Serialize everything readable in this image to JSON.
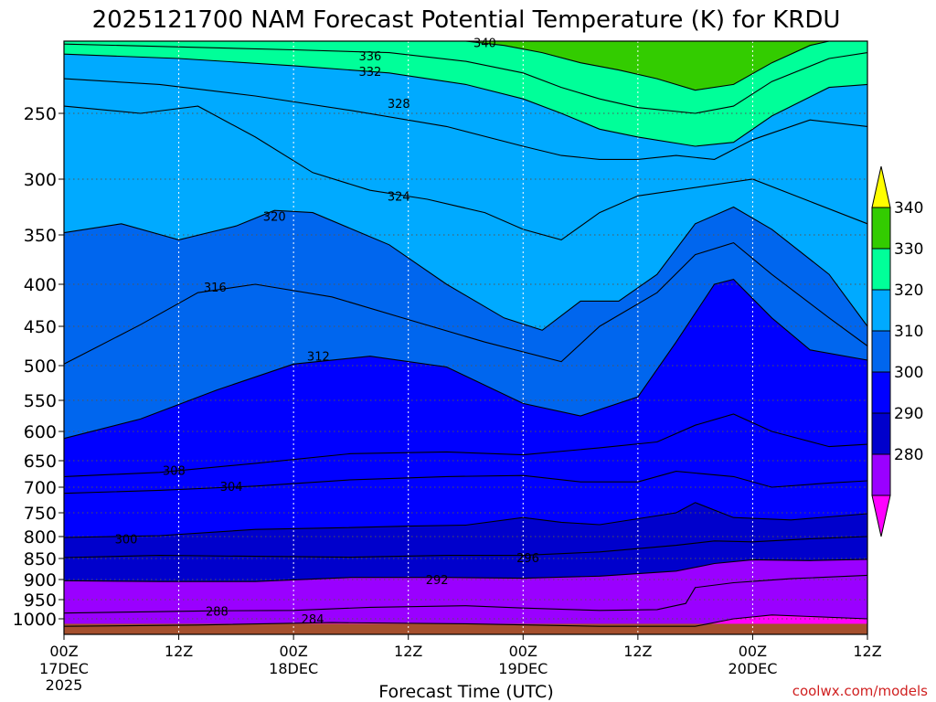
{
  "chart_data": {
    "type": "heatmap",
    "title": "2025121700 NAM Forecast Potential Temperature (K) for KRDU",
    "xlabel": "Forecast Time (UTC)",
    "ylabel": "",
    "credit": "coolwx.com/models",
    "x_ticks": [
      {
        "label": "00Z",
        "sub": "17DEC",
        "sub2": "2025",
        "hour": 0
      },
      {
        "label": "12Z",
        "sub": "",
        "sub2": "",
        "hour": 12
      },
      {
        "label": "00Z",
        "sub": "18DEC",
        "sub2": "",
        "hour": 24
      },
      {
        "label": "12Z",
        "sub": "",
        "sub2": "",
        "hour": 36
      },
      {
        "label": "00Z",
        "sub": "19DEC",
        "sub2": "",
        "hour": 48
      },
      {
        "label": "12Z",
        "sub": "",
        "sub2": "",
        "hour": 60
      },
      {
        "label": "00Z",
        "sub": "20DEC",
        "sub2": "",
        "hour": 72
      },
      {
        "label": "12Z",
        "sub": "",
        "sub2": "",
        "hour": 84
      }
    ],
    "xlim": [
      0,
      84
    ],
    "ylim": [
      1025,
      200
    ],
    "y_ticks": [
      250,
      300,
      350,
      400,
      450,
      500,
      550,
      600,
      650,
      700,
      750,
      800,
      850,
      900,
      950,
      1000
    ],
    "colorbar": {
      "levels": [
        280,
        290,
        300,
        310,
        320,
        330,
        340
      ],
      "colors": [
        "#ff00ff",
        "#9a00ff",
        "#0000cc",
        "#0000ff",
        "#0066ee",
        "#00aaff",
        "#00ff99",
        "#33cc00",
        "#ffff00"
      ]
    },
    "ground_color": "#a5502d",
    "series": [
      {
        "name": "284",
        "label_at": {
          "hour": 26,
          "pres": 1000
        },
        "values": [
          [
            0,
            1012
          ],
          [
            14,
            1010
          ],
          [
            28,
            1006
          ],
          [
            42,
            1008
          ],
          [
            56,
            1012
          ],
          [
            66,
            1012
          ],
          [
            70,
            1000
          ],
          [
            74,
            990
          ],
          [
            84,
            1000
          ]
        ]
      },
      {
        "name": "288",
        "label_at": {
          "hour": 16,
          "pres": 980
        },
        "values": [
          [
            0,
            985
          ],
          [
            8,
            982
          ],
          [
            16,
            979
          ],
          [
            24,
            978
          ],
          [
            32,
            970
          ],
          [
            42,
            966
          ],
          [
            48,
            972
          ],
          [
            56,
            978
          ],
          [
            62,
            976
          ],
          [
            65,
            960
          ],
          [
            66,
            920
          ],
          [
            70,
            908
          ],
          [
            76,
            898
          ],
          [
            84,
            890
          ]
        ]
      },
      {
        "name": "292",
        "label_at": {
          "hour": 39,
          "pres": 900
        },
        "values": [
          [
            0,
            903
          ],
          [
            10,
            905
          ],
          [
            20,
            905
          ],
          [
            30,
            895
          ],
          [
            40,
            895
          ],
          [
            48,
            897
          ],
          [
            56,
            892
          ],
          [
            64,
            880
          ],
          [
            68,
            862
          ],
          [
            72,
            853
          ],
          [
            78,
            855
          ],
          [
            84,
            852
          ]
        ]
      },
      {
        "name": "296",
        "label_at": {
          "hour": 48.5,
          "pres": 848
        },
        "values": [
          [
            0,
            848
          ],
          [
            10,
            843
          ],
          [
            20,
            845
          ],
          [
            30,
            847
          ],
          [
            40,
            843
          ],
          [
            48,
            843
          ],
          [
            56,
            835
          ],
          [
            64,
            820
          ],
          [
            68,
            810
          ],
          [
            72,
            812
          ],
          [
            78,
            805
          ],
          [
            84,
            800
          ]
        ]
      },
      {
        "name": "300",
        "label_at": {
          "hour": 6.5,
          "pres": 805
        },
        "values": [
          [
            0,
            802
          ],
          [
            10,
            798
          ],
          [
            20,
            785
          ],
          [
            28,
            782
          ],
          [
            36,
            778
          ],
          [
            42,
            776
          ],
          [
            48,
            760
          ],
          [
            52,
            770
          ],
          [
            56,
            775
          ],
          [
            64,
            750
          ],
          [
            66,
            730
          ],
          [
            70,
            760
          ],
          [
            76,
            765
          ],
          [
            84,
            752
          ]
        ]
      },
      {
        "name": "304",
        "label_at": {
          "hour": 17.5,
          "pres": 698
        },
        "values": [
          [
            0,
            712
          ],
          [
            10,
            706
          ],
          [
            20,
            698
          ],
          [
            30,
            686
          ],
          [
            40,
            680
          ],
          [
            48,
            678
          ],
          [
            54,
            690
          ],
          [
            60,
            690
          ],
          [
            64,
            670
          ],
          [
            70,
            680
          ],
          [
            74,
            700
          ],
          [
            80,
            692
          ],
          [
            84,
            688
          ]
        ]
      },
      {
        "name": "308",
        "label_at": {
          "hour": 11.5,
          "pres": 668
        },
        "values": [
          [
            0,
            680
          ],
          [
            10,
            672
          ],
          [
            20,
            655
          ],
          [
            30,
            638
          ],
          [
            40,
            635
          ],
          [
            48,
            640
          ],
          [
            56,
            628
          ],
          [
            62,
            618
          ],
          [
            66,
            590
          ],
          [
            70,
            572
          ],
          [
            74,
            600
          ],
          [
            80,
            626
          ],
          [
            84,
            622
          ]
        ]
      },
      {
        "name": "312",
        "label_at": {
          "hour": 26.6,
          "pres": 488
        },
        "values": [
          [
            0,
            612
          ],
          [
            8,
            580
          ],
          [
            16,
            535
          ],
          [
            24,
            498
          ],
          [
            32,
            488
          ],
          [
            40,
            502
          ],
          [
            48,
            555
          ],
          [
            54,
            575
          ],
          [
            60,
            545
          ],
          [
            64,
            470
          ],
          [
            68,
            400
          ],
          [
            70,
            395
          ],
          [
            74,
            440
          ],
          [
            78,
            480
          ],
          [
            84,
            493
          ]
        ]
      },
      {
        "name": "316",
        "label_at": {
          "hour": 15.8,
          "pres": 403
        },
        "values": [
          [
            0,
            498
          ],
          [
            8,
            448
          ],
          [
            14,
            410
          ],
          [
            20,
            400
          ],
          [
            28,
            415
          ],
          [
            36,
            442
          ],
          [
            44,
            470
          ],
          [
            52,
            495
          ],
          [
            56,
            450
          ],
          [
            62,
            410
          ],
          [
            66,
            370
          ],
          [
            70,
            358
          ],
          [
            74,
            390
          ],
          [
            80,
            440
          ],
          [
            84,
            475
          ]
        ]
      },
      {
        "name": "320",
        "label_at": {
          "hour": 22,
          "pres": 333
        },
        "values": [
          [
            0,
            348
          ],
          [
            6,
            340
          ],
          [
            12,
            355
          ],
          [
            18,
            342
          ],
          [
            22,
            328
          ],
          [
            26,
            330
          ],
          [
            34,
            360
          ],
          [
            40,
            400
          ],
          [
            46,
            440
          ],
          [
            50,
            455
          ],
          [
            54,
            420
          ],
          [
            58,
            420
          ],
          [
            62,
            390
          ],
          [
            66,
            340
          ],
          [
            70,
            325
          ],
          [
            74,
            345
          ],
          [
            80,
            390
          ],
          [
            84,
            450
          ]
        ]
      },
      {
        "name": "324",
        "label_at": {
          "hour": 35,
          "pres": 315
        },
        "values": [
          [
            0,
            245
          ],
          [
            8,
            250
          ],
          [
            14,
            245
          ],
          [
            20,
            268
          ],
          [
            26,
            295
          ],
          [
            32,
            310
          ],
          [
            38,
            318
          ],
          [
            44,
            330
          ],
          [
            48,
            345
          ],
          [
            52,
            355
          ],
          [
            56,
            330
          ],
          [
            60,
            315
          ],
          [
            64,
            310
          ],
          [
            68,
            305
          ],
          [
            72,
            300
          ],
          [
            78,
            320
          ],
          [
            84,
            340
          ]
        ]
      },
      {
        "name": "328",
        "label_at": {
          "hour": 35,
          "pres": 243
        },
        "values": [
          [
            0,
            226
          ],
          [
            10,
            230
          ],
          [
            20,
            238
          ],
          [
            30,
            248
          ],
          [
            40,
            260
          ],
          [
            48,
            275
          ],
          [
            52,
            282
          ],
          [
            56,
            285
          ],
          [
            60,
            285
          ],
          [
            64,
            282
          ],
          [
            68,
            285
          ],
          [
            72,
            270
          ],
          [
            78,
            255
          ],
          [
            84,
            260
          ]
        ]
      },
      {
        "name": "332",
        "label_at": {
          "hour": 32,
          "pres": 221
        },
        "values": [
          [
            0,
            209
          ],
          [
            12,
            212
          ],
          [
            24,
            217
          ],
          [
            34,
            222
          ],
          [
            42,
            230
          ],
          [
            48,
            240
          ],
          [
            52,
            250
          ],
          [
            56,
            262
          ],
          [
            60,
            268
          ],
          [
            66,
            275
          ],
          [
            70,
            272
          ],
          [
            74,
            252
          ],
          [
            80,
            232
          ],
          [
            84,
            230
          ]
        ]
      },
      {
        "name": "336",
        "label_at": {
          "hour": 32,
          "pres": 210
        },
        "values": [
          [
            0,
            202
          ],
          [
            12,
            204
          ],
          [
            24,
            206
          ],
          [
            34,
            208
          ],
          [
            42,
            214
          ],
          [
            48,
            222
          ],
          [
            52,
            232
          ],
          [
            56,
            240
          ],
          [
            60,
            246
          ],
          [
            66,
            250
          ],
          [
            70,
            245
          ],
          [
            74,
            228
          ],
          [
            80,
            212
          ],
          [
            84,
            208
          ]
        ]
      },
      {
        "name": "340",
        "label_at": {
          "hour": 44,
          "pres": 201
        },
        "values": [
          [
            42,
            200
          ],
          [
            46,
            203
          ],
          [
            50,
            208
          ],
          [
            54,
            215
          ],
          [
            58,
            220
          ],
          [
            62,
            226
          ],
          [
            66,
            234
          ],
          [
            70,
            230
          ],
          [
            74,
            215
          ],
          [
            78,
            203
          ],
          [
            80,
            200
          ]
        ]
      }
    ]
  }
}
